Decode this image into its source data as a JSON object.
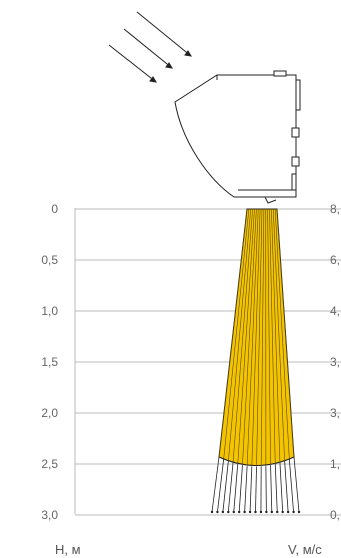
{
  "diagram": {
    "airflow_arrows_icon": "airflow-arrows-icon",
    "heater_unit_icon": "air-curtain-heater-icon",
    "height_axis": {
      "title": "H, м",
      "ticks": [
        "0",
        "0,5",
        "1,0",
        "1,5",
        "2,0",
        "2,5",
        "3,0"
      ]
    },
    "velocity_axis": {
      "title": "V, м/с",
      "ticks": [
        "8,",
        "6,",
        "4,",
        "3,",
        "3,",
        "1,",
        "0,"
      ]
    },
    "jet": {
      "heated_zone_depth_m": 2.5,
      "free_jet_depth_m": 3.0,
      "colors": {
        "heated": "#f5c400",
        "line": "#5a4a10",
        "outline": "#222222"
      }
    }
  }
}
